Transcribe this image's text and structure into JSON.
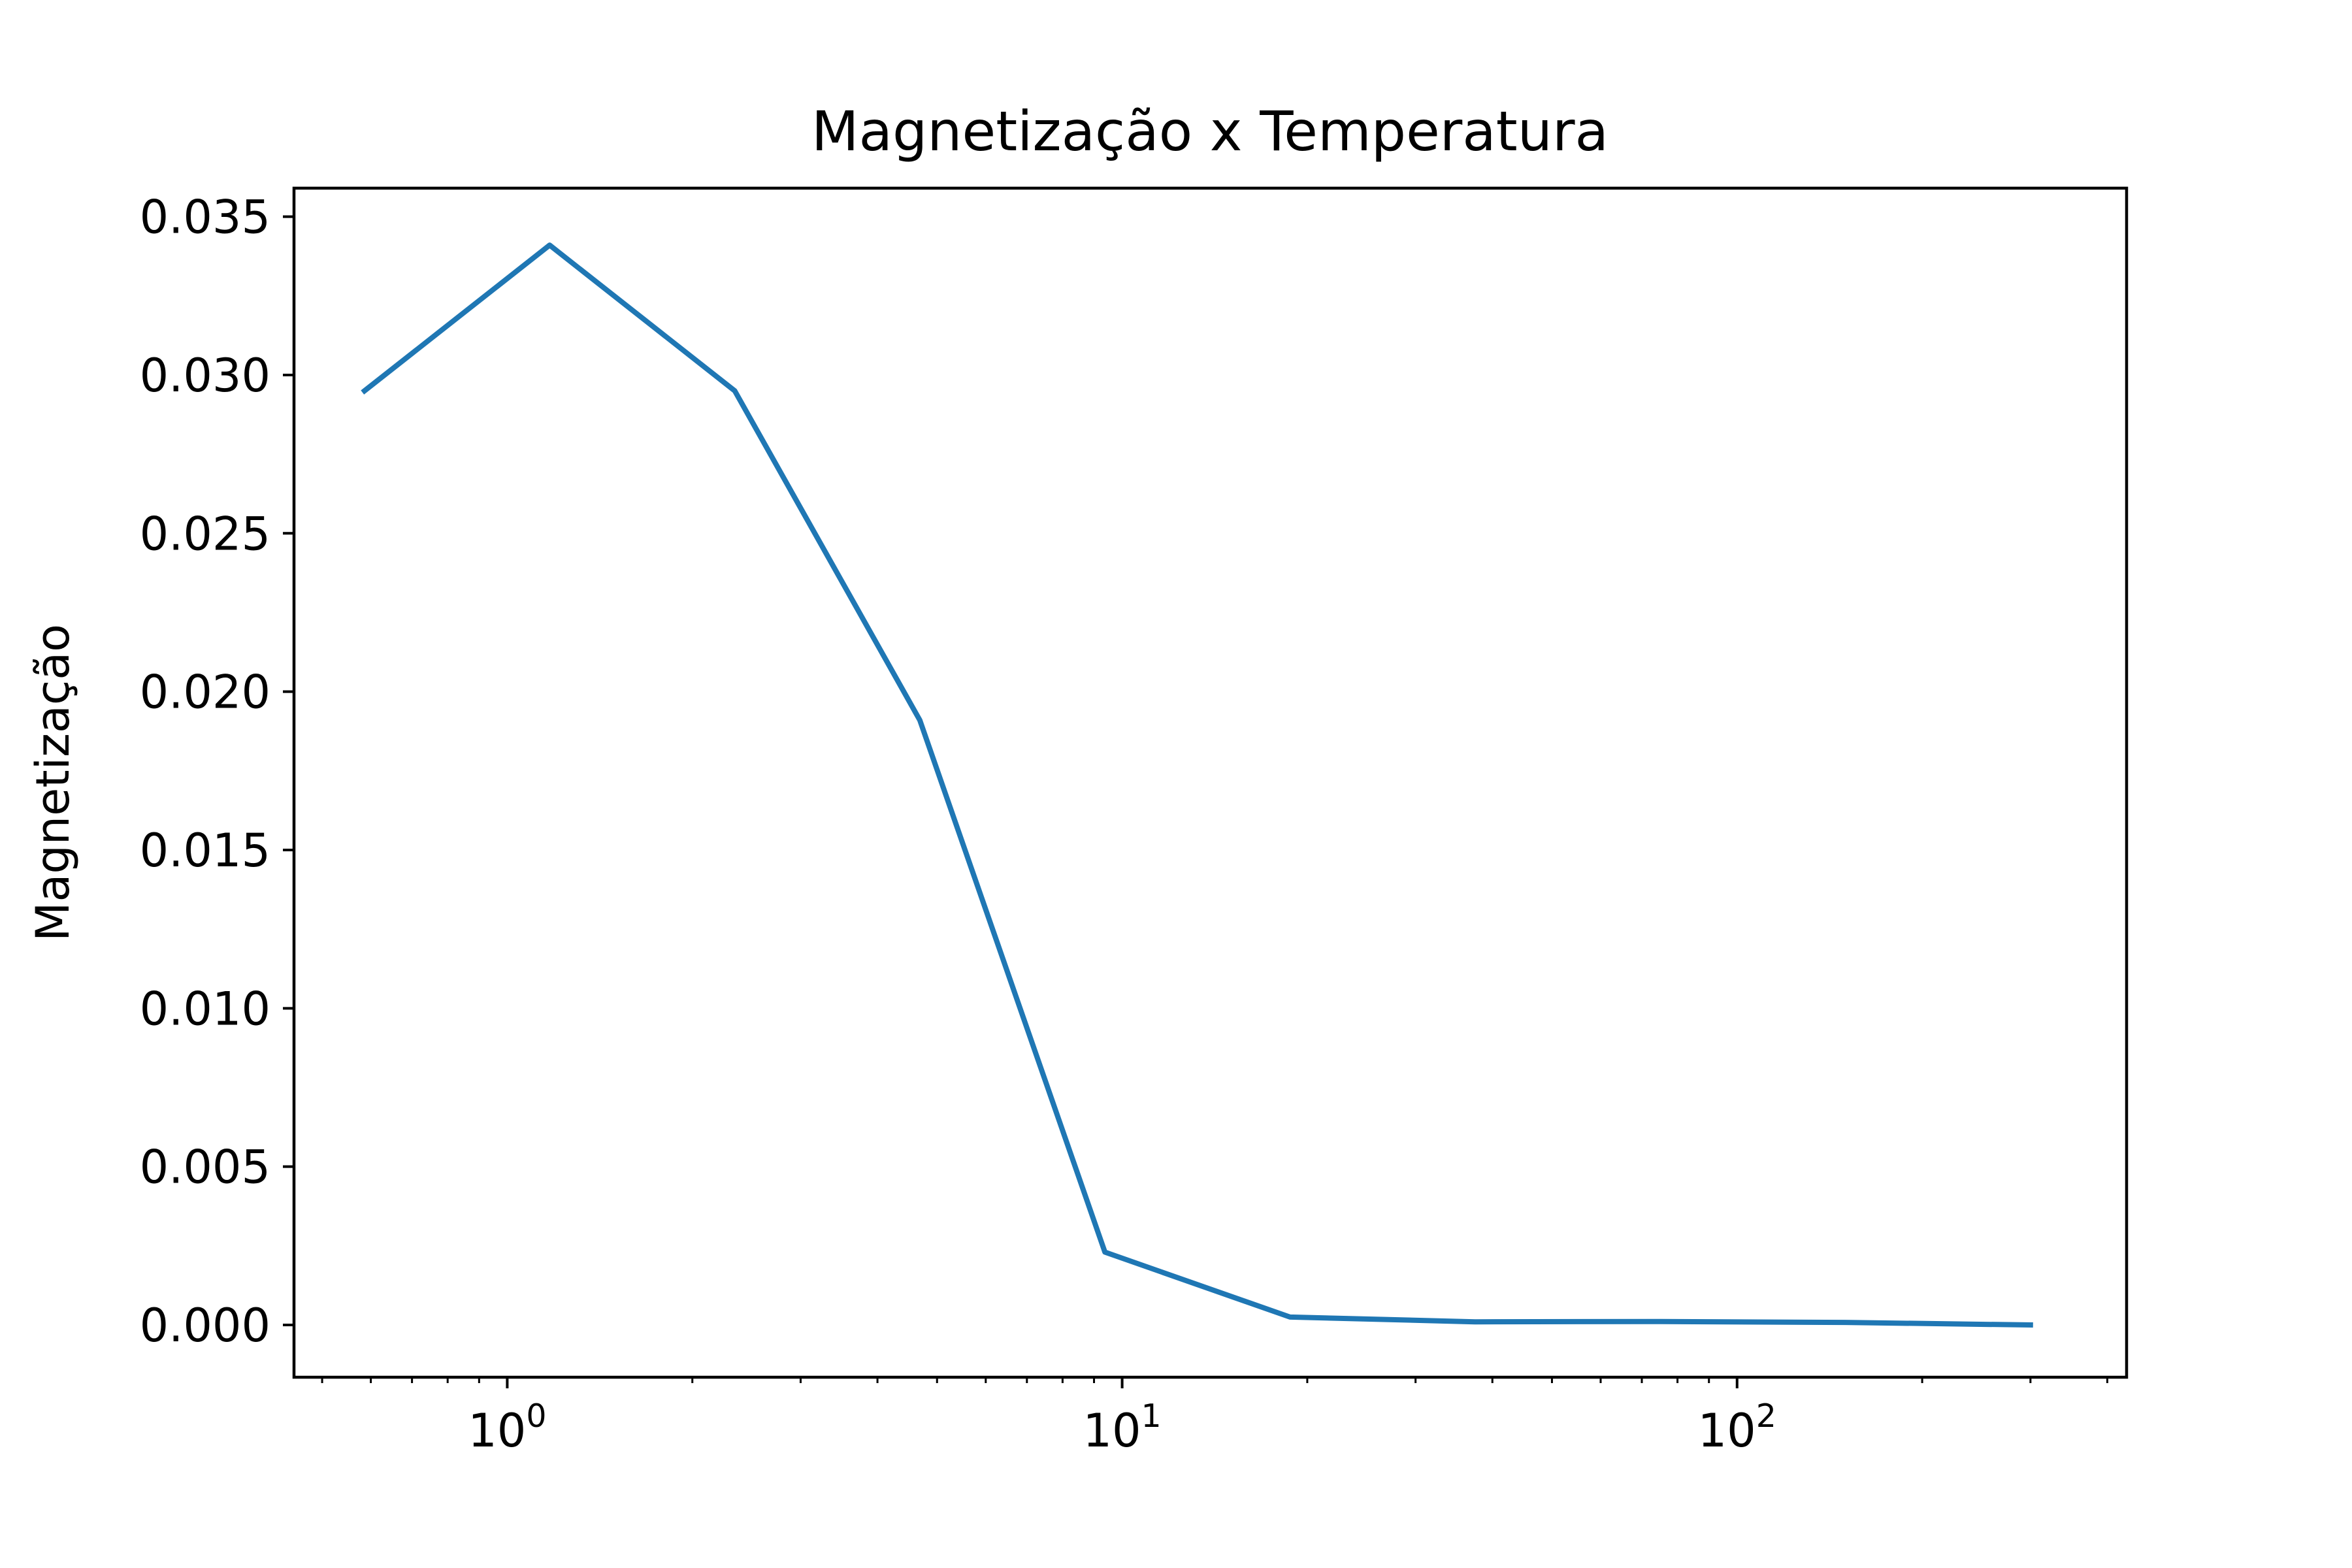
{
  "chart_data": {
    "type": "line",
    "title": "Magnetização x Temperatura",
    "xlabel": "",
    "ylabel": "Magnetização",
    "xscale": "log",
    "xlim": [
      0.45,
      430
    ],
    "ylim": [
      -0.00165,
      0.0359
    ],
    "grid": false,
    "legend": "none",
    "line_color": "#1f77b4",
    "x": [
      0.586,
      1.172,
      2.344,
      4.6875,
      9.375,
      18.75,
      37.5,
      75,
      150,
      300
    ],
    "y": [
      0.0295,
      0.0341,
      0.0295,
      0.0191,
      0.0023,
      0.00025,
      0.0001,
      0.00011,
      8e-05,
      0.0
    ],
    "yticks": [
      {
        "value": 0.0,
        "label": "0.000"
      },
      {
        "value": 0.005,
        "label": "0.005"
      },
      {
        "value": 0.01,
        "label": "0.010"
      },
      {
        "value": 0.015,
        "label": "0.015"
      },
      {
        "value": 0.02,
        "label": "0.020"
      },
      {
        "value": 0.025,
        "label": "0.025"
      },
      {
        "value": 0.03,
        "label": "0.030"
      },
      {
        "value": 0.035,
        "label": "0.035"
      }
    ],
    "xticks_major": [
      {
        "value": 1,
        "base": "10",
        "exp": "0"
      },
      {
        "value": 10,
        "base": "10",
        "exp": "1"
      },
      {
        "value": 100,
        "base": "10",
        "exp": "2"
      }
    ]
  }
}
